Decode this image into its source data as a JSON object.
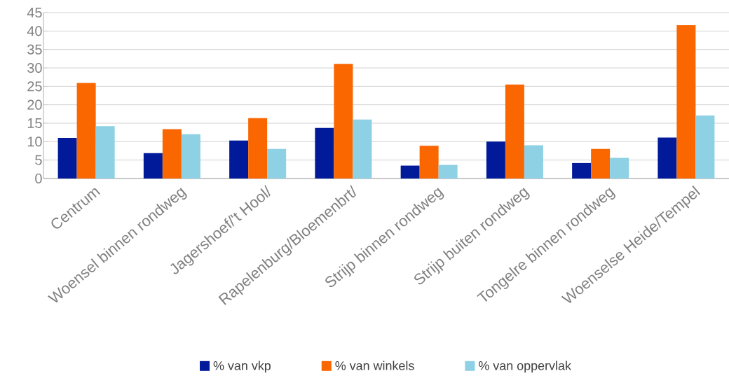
{
  "chart_data": {
    "type": "bar",
    "categories": [
      "Centrum",
      "Woensel binnen rondweg",
      "Jagershoef/'t Hool/",
      "Rapelenburg/Bloemenbrt/",
      "Strijp binnen rondweg",
      "Strijp buiten rondweg",
      "Tongelre binnen rondweg",
      "Woenselse Heide/Tempel"
    ],
    "series": [
      {
        "name": "% van vkp",
        "color": "#001a99",
        "values": [
          11.0,
          6.9,
          10.3,
          13.7,
          3.5,
          10.0,
          4.2,
          11.1
        ]
      },
      {
        "name": "% van winkels",
        "color": "#fa6600",
        "values": [
          25.9,
          13.4,
          16.4,
          31.1,
          8.9,
          25.5,
          8.0,
          41.6
        ]
      },
      {
        "name": "% van oppervlak",
        "color": "#8ed0e4",
        "values": [
          14.2,
          12.0,
          8.0,
          16.0,
          3.7,
          9.0,
          5.6,
          17.1
        ]
      }
    ],
    "ylim": [
      0,
      45
    ],
    "yticks": [
      0,
      5,
      10,
      15,
      20,
      25,
      30,
      35,
      40,
      45
    ],
    "grid": "y",
    "legend": "bottom"
  }
}
